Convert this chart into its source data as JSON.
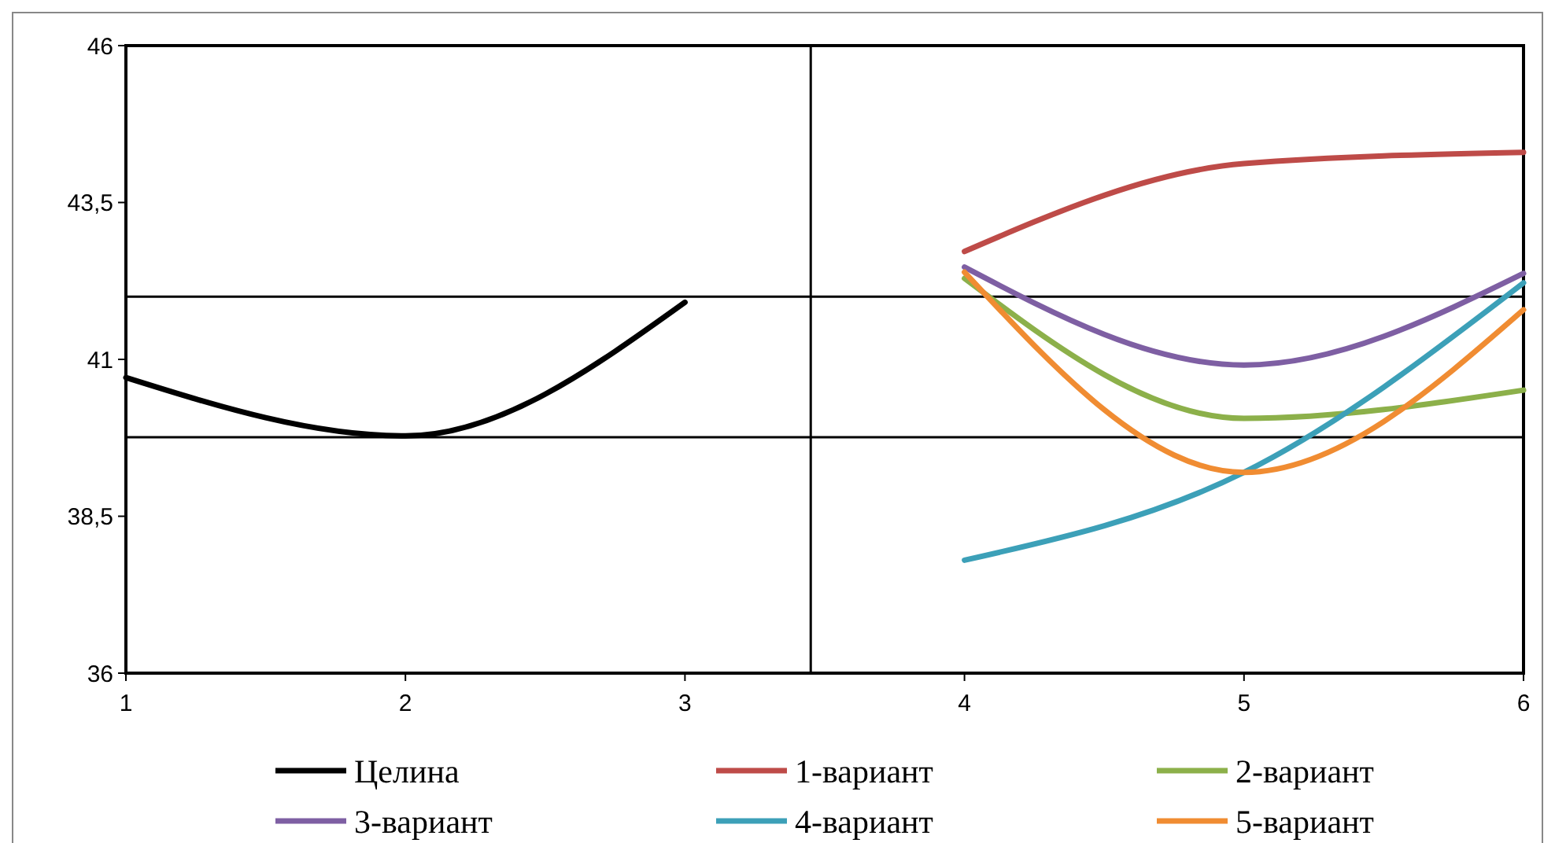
{
  "chart_data": {
    "type": "line",
    "xlim": [
      1,
      6
    ],
    "xticks": [
      1,
      2,
      3,
      4,
      5,
      6
    ],
    "ylim": [
      36,
      46
    ],
    "yticks": [
      36,
      {
        "value": 38.5,
        "label": "38,5"
      },
      41,
      {
        "value": 43.5,
        "label": "43,5"
      },
      46
    ],
    "grid": false,
    "legend": "bottom",
    "marker": "none",
    "line_style": "solid",
    "series": [
      {
        "name": "Целина",
        "color": "#000000",
        "x": [
          1,
          2,
          3
        ],
        "values": [
          40.71,
          39.78,
          41.91
        ]
      },
      {
        "name": "1-вариант",
        "color": "#be4b48",
        "x": [
          4,
          5,
          6
        ],
        "values": [
          42.72,
          44.12,
          44.3
        ]
      },
      {
        "name": "2-вариант",
        "color": "#8cb04a",
        "x": [
          4,
          5,
          6
        ],
        "values": [
          42.29,
          40.06,
          40.51
        ]
      },
      {
        "name": "3-вариант",
        "color": "#7e5fa3",
        "x": [
          4,
          5,
          6
        ],
        "values": [
          42.47,
          40.91,
          42.37
        ]
      },
      {
        "name": "4-вариант",
        "color": "#3ca0b8",
        "x": [
          4,
          5,
          6
        ],
        "values": [
          37.8,
          39.2,
          42.22
        ]
      },
      {
        "name": "5-вариант",
        "color": "#f08c32",
        "x": [
          4,
          5,
          6
        ],
        "values": [
          42.39,
          39.2,
          41.79
        ]
      }
    ],
    "ref_lines": [
      {
        "axis": "y",
        "value": 42,
        "color": "#000000"
      },
      {
        "axis": "y",
        "value": 39.76,
        "color": "#000000"
      },
      {
        "axis": "x",
        "value": 3.45,
        "color": "#000000"
      }
    ]
  }
}
